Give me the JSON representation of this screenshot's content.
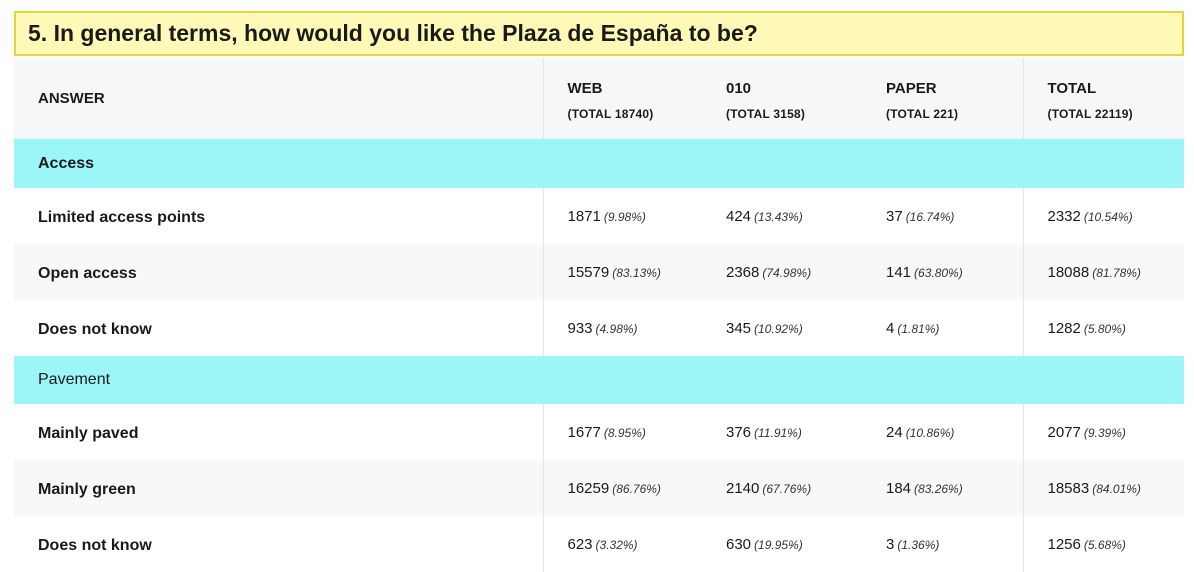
{
  "question": "5. In general terms, how would you like the Plaza de España to be?",
  "header": {
    "answer": "ANSWER",
    "columns": [
      {
        "label": "WEB",
        "sub": "(TOTAL 18740)"
      },
      {
        "label": "010",
        "sub": "(TOTAL 3158)"
      },
      {
        "label": "PAPER",
        "sub": "(TOTAL 221)"
      },
      {
        "label": "TOTAL",
        "sub": "(TOTAL 22119)"
      }
    ]
  },
  "sections": [
    {
      "title": "Access",
      "rows": [
        {
          "label": "Limited access points",
          "cells": [
            {
              "n": "1871",
              "p": "(9.98%)"
            },
            {
              "n": "424",
              "p": "(13.43%)"
            },
            {
              "n": "37",
              "p": "(16.74%)"
            },
            {
              "n": "2332",
              "p": "(10.54%)"
            }
          ]
        },
        {
          "label": "Open access",
          "cells": [
            {
              "n": "15579",
              "p": "(83.13%)"
            },
            {
              "n": "2368",
              "p": "(74.98%)"
            },
            {
              "n": "141",
              "p": "(63.80%)"
            },
            {
              "n": "18088",
              "p": "(81.78%)"
            }
          ]
        },
        {
          "label": "Does not know",
          "cells": [
            {
              "n": "933",
              "p": "(4.98%)"
            },
            {
              "n": "345",
              "p": "(10.92%)"
            },
            {
              "n": "4",
              "p": "(1.81%)"
            },
            {
              "n": "1282",
              "p": "(5.80%)"
            }
          ]
        }
      ]
    },
    {
      "title": "Pavement",
      "rows": [
        {
          "label": "Mainly paved",
          "cells": [
            {
              "n": "1677",
              "p": "(8.95%)"
            },
            {
              "n": "376",
              "p": "(11.91%)"
            },
            {
              "n": "24",
              "p": "(10.86%)"
            },
            {
              "n": "2077",
              "p": "(9.39%)"
            }
          ]
        },
        {
          "label": "Mainly green",
          "cells": [
            {
              "n": "16259",
              "p": "(86.76%)"
            },
            {
              "n": "2140",
              "p": "(67.76%)"
            },
            {
              "n": "184",
              "p": "(83.26%)"
            },
            {
              "n": "18583",
              "p": "(84.01%)"
            }
          ]
        },
        {
          "label": "Does not know",
          "cells": [
            {
              "n": "623",
              "p": "(3.32%)"
            },
            {
              "n": "630",
              "p": "(19.95%)"
            },
            {
              "n": "3",
              "p": "(1.36%)"
            },
            {
              "n": "1256",
              "p": "(5.68%)"
            }
          ]
        }
      ]
    }
  ]
}
